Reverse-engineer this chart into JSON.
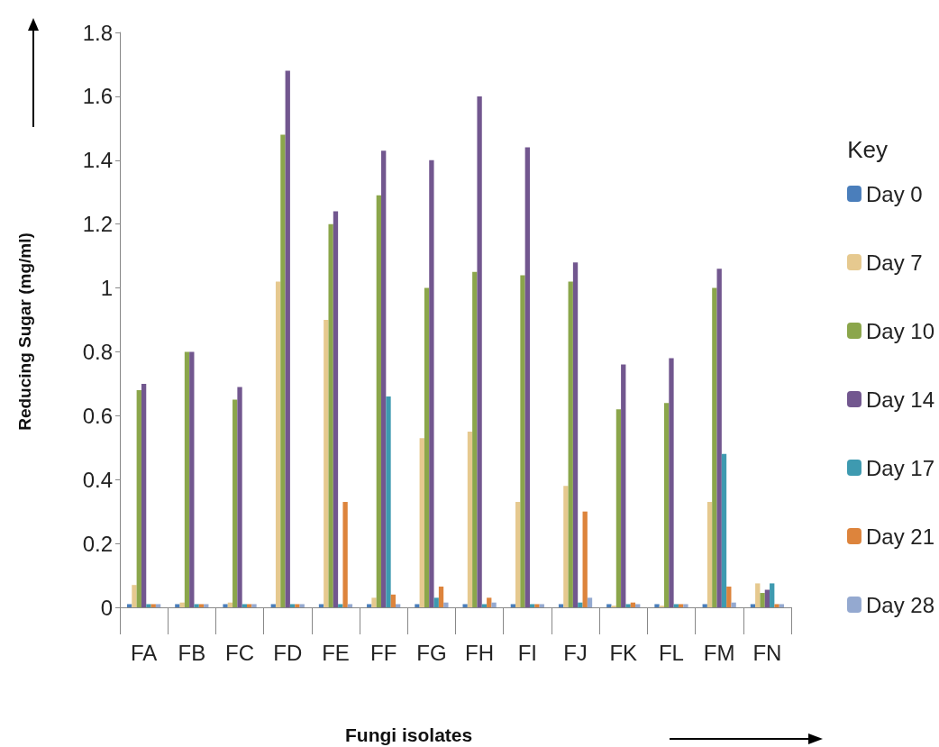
{
  "chart_data": {
    "type": "bar",
    "xlabel": "Fungi isolates",
    "ylabel": "Reducing Sugar (mg/ml)",
    "legend_title": "Key",
    "legend": "right",
    "grid": false,
    "categories": [
      "FA",
      "FB",
      "FC",
      "FD",
      "FE",
      "FF",
      "FG",
      "FH",
      "FI",
      "FJ",
      "FK",
      "FL",
      "FM",
      "FN"
    ],
    "ylim": [
      0,
      1.8
    ],
    "yticks": [
      0,
      0.2,
      0.4,
      0.6,
      0.8,
      1,
      1.2,
      1.4,
      1.6,
      1.8
    ],
    "series": [
      {
        "name": "Day 0",
        "color": "#4a7ebb",
        "values": [
          0.01,
          0.01,
          0.01,
          0.01,
          0.01,
          0.01,
          0.01,
          0.01,
          0.01,
          0.01,
          0.01,
          0.01,
          0.01,
          0.01
        ]
      },
      {
        "name": "Day 7",
        "color": "#e6c98f",
        "values": [
          0.07,
          0.015,
          0.015,
          1.02,
          0.9,
          0.03,
          0.53,
          0.55,
          0.33,
          0.38,
          0.005,
          0.005,
          0.33,
          0.075
        ]
      },
      {
        "name": "Day 10",
        "color": "#8ba64b",
        "values": [
          0.68,
          0.8,
          0.65,
          1.48,
          1.2,
          1.29,
          1,
          1.05,
          1.04,
          1.02,
          0.62,
          0.64,
          1,
          0.045
        ]
      },
      {
        "name": "Day 14",
        "color": "#72578f",
        "values": [
          0.7,
          0.8,
          0.69,
          1.68,
          1.24,
          1.43,
          1.4,
          1.6,
          1.44,
          1.08,
          0.76,
          0.78,
          1.06,
          0.055
        ]
      },
      {
        "name": "Day 17",
        "color": "#3e9ab0",
        "values": [
          0.01,
          0.01,
          0.01,
          0.01,
          0.01,
          0.66,
          0.03,
          0.01,
          0.01,
          0.015,
          0.01,
          0.01,
          0.48,
          0.075
        ]
      },
      {
        "name": "Day 21",
        "color": "#dd843c",
        "values": [
          0.01,
          0.01,
          0.01,
          0.01,
          0.33,
          0.04,
          0.065,
          0.03,
          0.01,
          0.3,
          0.015,
          0.01,
          0.065,
          0.01
        ]
      },
      {
        "name": "Day 28",
        "color": "#94a9d0",
        "values": [
          0.01,
          0.01,
          0.01,
          0.01,
          0.01,
          0.01,
          0.015,
          0.015,
          0.01,
          0.03,
          0.01,
          0.01,
          0.015,
          0.01
        ]
      }
    ]
  }
}
